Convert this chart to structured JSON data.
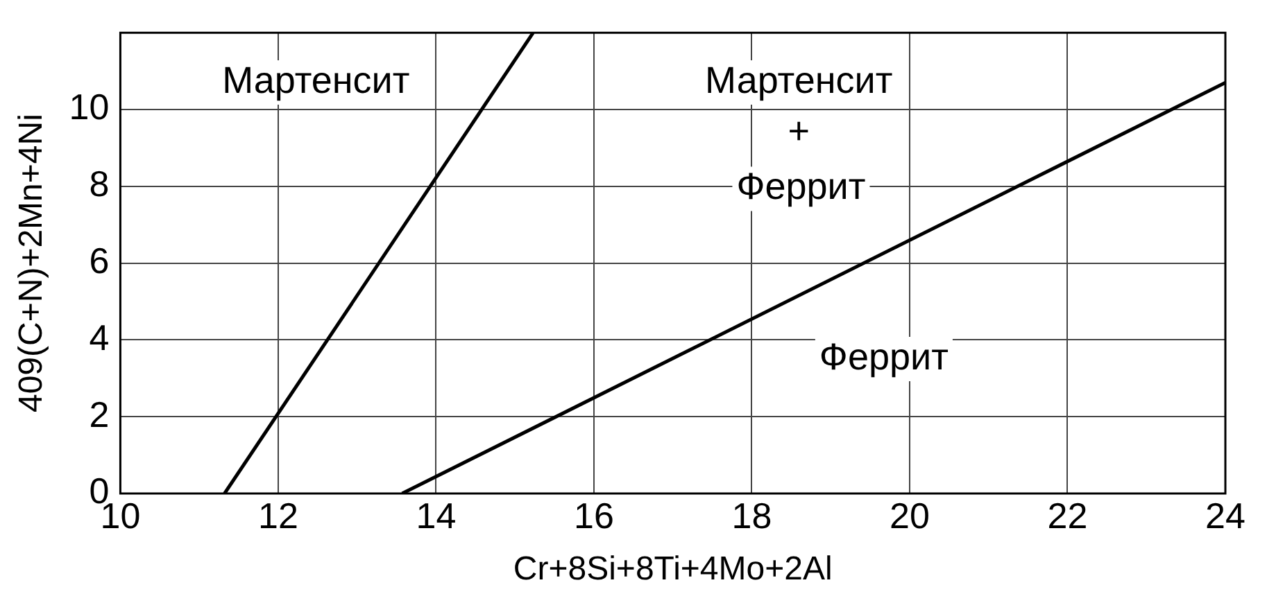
{
  "chart_data": {
    "type": "line",
    "xlabel": "Cr+8Si+8Ti+4Mo+2Al",
    "ylabel": "409(C+N)+2Mn+4Ni",
    "series": [
      {
        "color": "#000000",
        "x": [
          11.32,
          15.23
        ],
        "values": [
          0,
          12
        ]
      },
      {
        "color": "#000000",
        "x": [
          13.57,
          24
        ],
        "values": [
          0,
          10.7
        ]
      }
    ],
    "xlim": [
      10,
      24
    ],
    "xticks": [
      10,
      12,
      14,
      16,
      18,
      20,
      22,
      24
    ],
    "ylim": [
      0,
      12
    ],
    "yticks": [
      0,
      2,
      4,
      6,
      8,
      10
    ],
    "grid": true,
    "legend": false,
    "marker": "none",
    "line_style": "solid",
    "annotations": [
      "Мартенсит",
      "Мартенсит",
      "+",
      "Феррит",
      "Феррит"
    ]
  }
}
